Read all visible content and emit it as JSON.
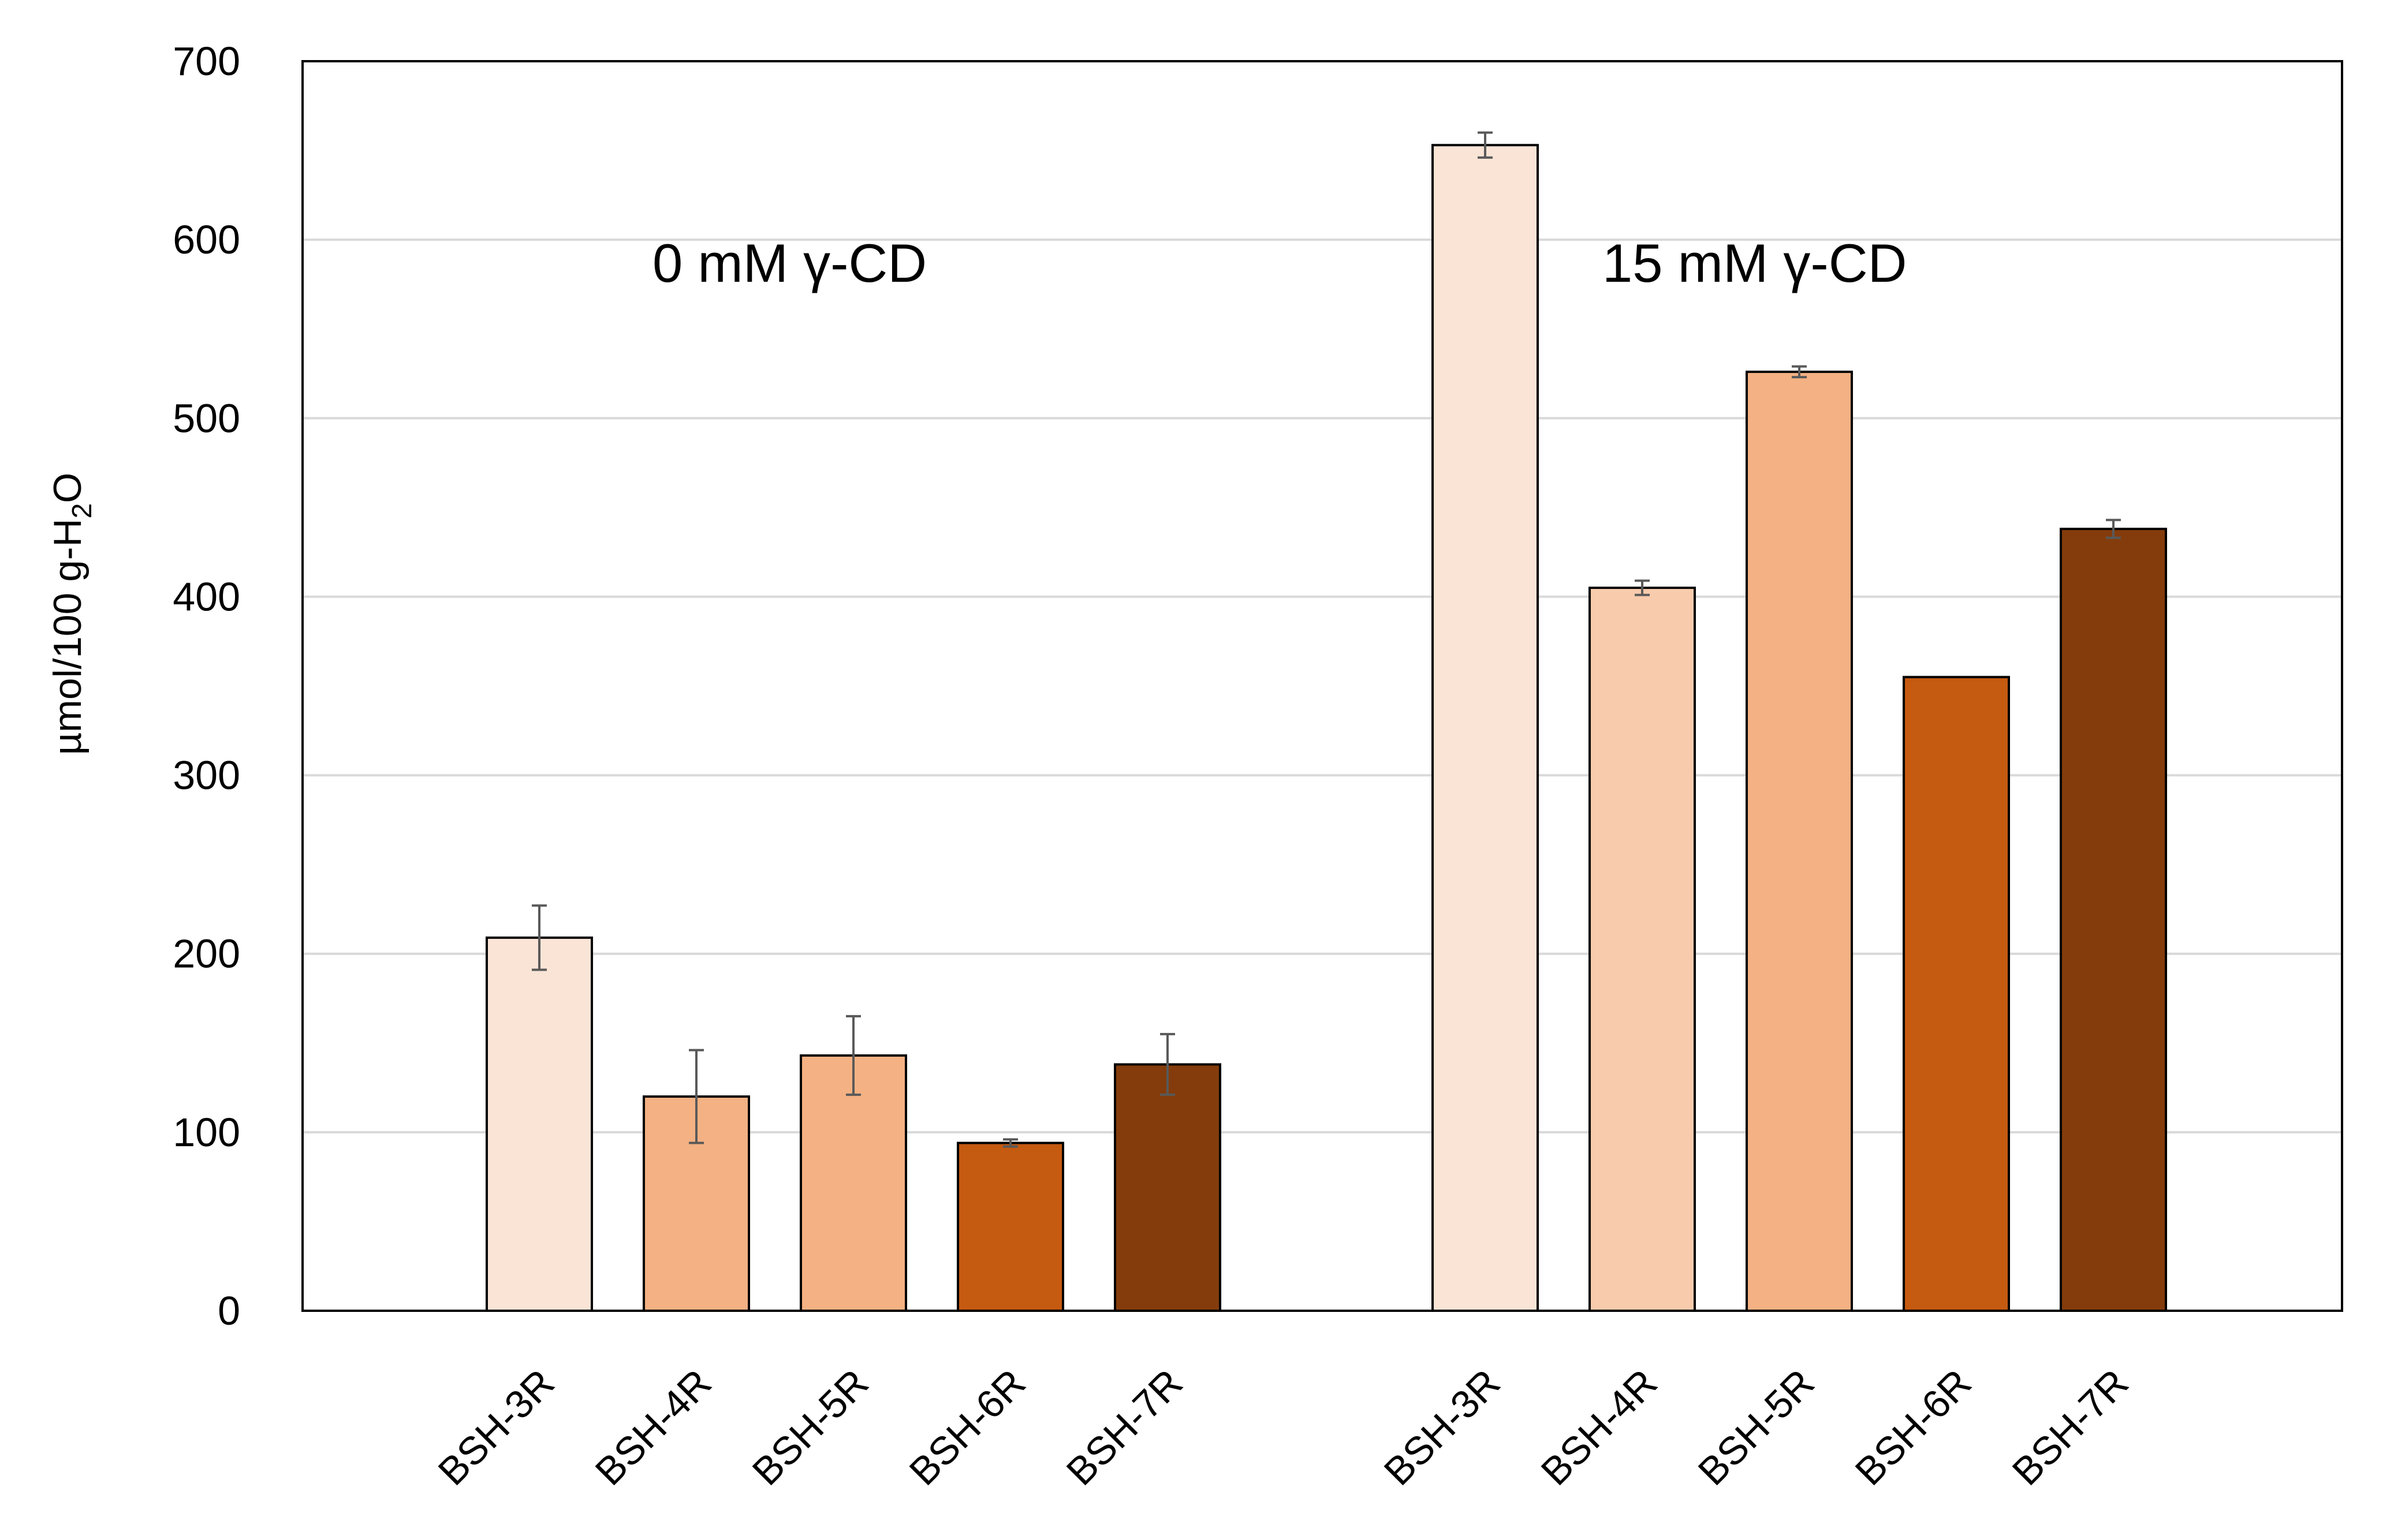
{
  "chart_data": {
    "type": "bar",
    "title": "",
    "xlabel": "",
    "ylabel": "µmol/100 g-H",
    "ylabel_subscript": "2",
    "ylabel_suffix": "O",
    "ylim": [
      0,
      700
    ],
    "yticks": [
      0,
      100,
      200,
      300,
      400,
      500,
      600,
      700
    ],
    "grid": true,
    "groups": [
      {
        "label": "0 mM γ-CD",
        "categories": [
          "BSH-3R",
          "BSH-4R",
          "BSH-5R",
          "BSH-6R",
          "BSH-7R"
        ],
        "values": [
          209,
          120,
          143,
          94,
          138
        ],
        "errors": [
          18,
          26,
          22,
          2,
          17
        ],
        "colors": [
          "#FAE4D6",
          "#F4B183",
          "#F4B183",
          "#C55A11",
          "#843C0C"
        ]
      },
      {
        "label": "15 mM γ-CD",
        "categories": [
          "BSH-3R",
          "BSH-4R",
          "BSH-5R",
          "BSH-6R",
          "BSH-7R"
        ],
        "values": [
          653,
          405,
          526,
          355,
          438
        ],
        "errors": [
          7,
          4,
          3,
          0,
          5
        ],
        "colors": [
          "#FAE4D6",
          "#F8CBAD",
          "#F4B183",
          "#C55A11",
          "#843C0C"
        ]
      }
    ]
  }
}
